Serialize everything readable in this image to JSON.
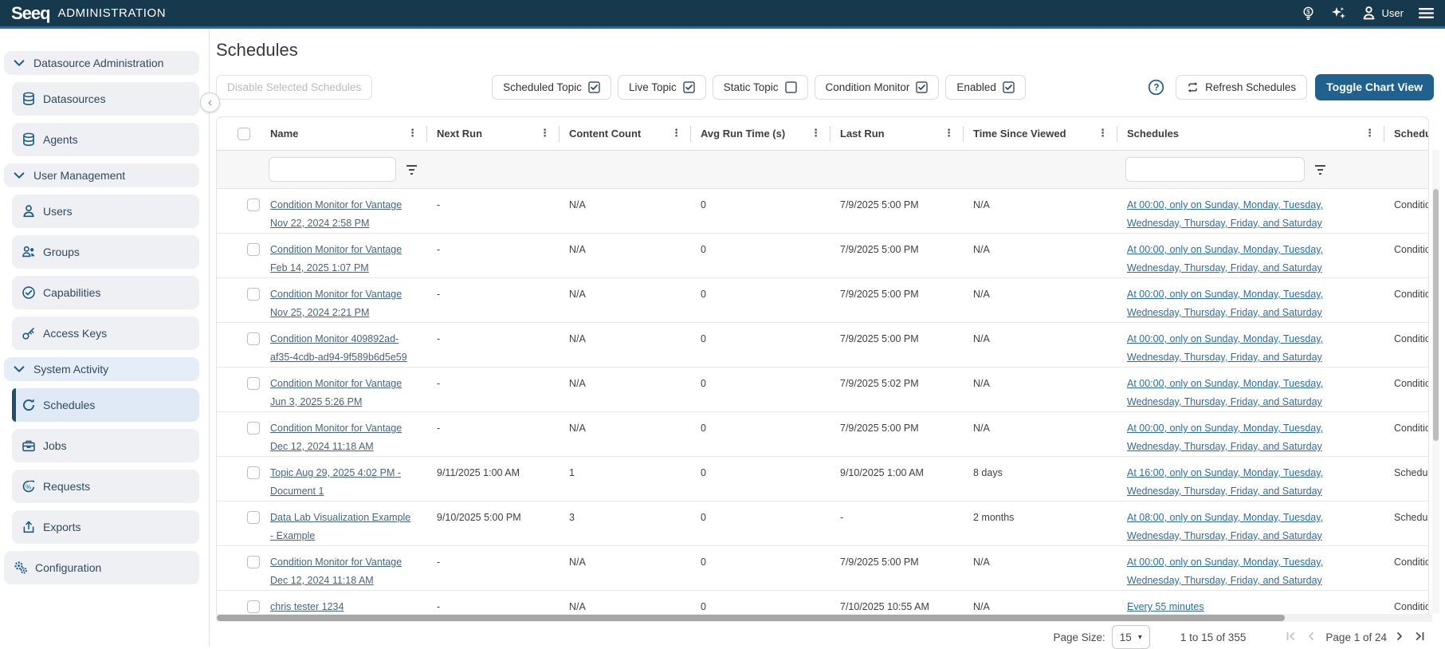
{
  "topbar": {
    "brand": "Seeq",
    "title": "ADMINISTRATION",
    "user_label": "User",
    "icons": [
      "tips-lightbulb-icon",
      "ai-sparkles-icon",
      "user-icon",
      "hamburger-menu-icon"
    ]
  },
  "sidebar": {
    "items": [
      {
        "kind": "section",
        "icon": "chevron-down",
        "label": "Datasource Administration"
      },
      {
        "kind": "item",
        "icon": "database",
        "label": "Datasources"
      },
      {
        "kind": "item",
        "icon": "database",
        "label": "Agents"
      },
      {
        "kind": "section",
        "icon": "chevron-down",
        "label": "User Management"
      },
      {
        "kind": "item",
        "icon": "user",
        "label": "Users"
      },
      {
        "kind": "item",
        "icon": "users",
        "label": "Groups"
      },
      {
        "kind": "item",
        "icon": "check-circle",
        "label": "Capabilities"
      },
      {
        "kind": "item",
        "icon": "key",
        "label": "Access Keys"
      },
      {
        "kind": "section",
        "icon": "chevron-down",
        "label": "System Activity",
        "highlight": true
      },
      {
        "kind": "item",
        "icon": "refresh",
        "label": "Schedules",
        "active": true
      },
      {
        "kind": "item",
        "icon": "briefcase",
        "label": "Jobs"
      },
      {
        "kind": "item",
        "icon": "gauge",
        "label": "Requests"
      },
      {
        "kind": "item",
        "icon": "export",
        "label": "Exports"
      },
      {
        "kind": "item",
        "icon": "gears",
        "label": "Configuration",
        "wide": true
      }
    ]
  },
  "page": {
    "title": "Schedules",
    "disable_button": "Disable Selected Schedules",
    "filters": [
      {
        "label": "Scheduled Topic",
        "checked": true
      },
      {
        "label": "Live Topic",
        "checked": true
      },
      {
        "label": "Static Topic",
        "checked": false
      },
      {
        "label": "Condition Monitor",
        "checked": true
      },
      {
        "label": "Enabled",
        "checked": true
      }
    ],
    "refresh_button": "Refresh Schedules",
    "toggle_chart_button": "Toggle Chart View"
  },
  "table": {
    "columns": [
      "Name",
      "Next Run",
      "Content Count",
      "Avg Run Time (s)",
      "Last Run",
      "Time Since Viewed",
      "Schedules",
      "Schedule Type"
    ],
    "rows": [
      {
        "name": "Condition Monitor for Vantage Nov 22, 2024 2:58 PM",
        "next_run": "-",
        "content_count": "N/A",
        "avg_run_time": "0",
        "last_run": "7/9/2025 5:00 PM",
        "time_since_viewed": "N/A",
        "schedules": "At 00:00, only on Sunday, Monday, Tuesday, Wednesday, Thursday, Friday, and Saturday",
        "schedule_type": "Condition Monitor"
      },
      {
        "name": "Condition Monitor for Vantage Feb 14, 2025 1:07 PM",
        "next_run": "-",
        "content_count": "N/A",
        "avg_run_time": "0",
        "last_run": "7/9/2025 5:00 PM",
        "time_since_viewed": "N/A",
        "schedules": "At 00:00, only on Sunday, Monday, Tuesday, Wednesday, Thursday, Friday, and Saturday",
        "schedule_type": "Condition Monitor"
      },
      {
        "name": "Condition Monitor for Vantage Nov 25, 2024 2:21 PM",
        "next_run": "-",
        "content_count": "N/A",
        "avg_run_time": "0",
        "last_run": "7/9/2025 5:00 PM",
        "time_since_viewed": "N/A",
        "schedules": "At 00:00, only on Sunday, Monday, Tuesday, Wednesday, Thursday, Friday, and Saturday",
        "schedule_type": "Condition Monitor"
      },
      {
        "name": "Condition Monitor 409892ad-af35-4cdb-ad94-9f589b6d5e59",
        "next_run": "-",
        "content_count": "N/A",
        "avg_run_time": "0",
        "last_run": "7/9/2025 5:00 PM",
        "time_since_viewed": "N/A",
        "schedules": "At 00:00, only on Sunday, Monday, Tuesday, Wednesday, Thursday, Friday, and Saturday",
        "schedule_type": "Condition Monitor"
      },
      {
        "name": "Condition Monitor for Vantage Jun 3, 2025 5:26 PM",
        "next_run": "-",
        "content_count": "N/A",
        "avg_run_time": "0",
        "last_run": "7/9/2025 5:02 PM",
        "time_since_viewed": "N/A",
        "schedules": "At 00:00, only on Sunday, Monday, Tuesday, Wednesday, Thursday, Friday, and Saturday",
        "schedule_type": "Condition Monitor"
      },
      {
        "name": "Condition Monitor for Vantage Dec 12, 2024 11:18 AM",
        "next_run": "-",
        "content_count": "N/A",
        "avg_run_time": "0",
        "last_run": "7/9/2025 5:00 PM",
        "time_since_viewed": "N/A",
        "schedules": "At 00:00, only on Sunday, Monday, Tuesday, Wednesday, Thursday, Friday, and Saturday",
        "schedule_type": "Condition Monitor"
      },
      {
        "name": "Topic Aug 29, 2025 4:02 PM - Document 1",
        "next_run": "9/11/2025 1:00 AM",
        "content_count": "1",
        "avg_run_time": "0",
        "last_run": "9/10/2025 1:00 AM",
        "time_since_viewed": "8 days",
        "schedules": "At 16:00, only on Sunday, Monday, Tuesday, Wednesday, Thursday, Friday, and Saturday",
        "schedule_type": "Scheduled Topic"
      },
      {
        "name": "Data Lab Visualization Example - Example",
        "next_run": "9/10/2025 5:00 PM",
        "content_count": "3",
        "avg_run_time": "0",
        "last_run": "-",
        "time_since_viewed": "2 months",
        "schedules": "At 08:00, only on Sunday, Monday, Tuesday, Wednesday, Thursday, Friday, and Saturday",
        "schedule_type": "Scheduled Topic"
      },
      {
        "name": "Condition Monitor for Vantage Dec 12, 2024 11:18 AM",
        "next_run": "-",
        "content_count": "N/A",
        "avg_run_time": "0",
        "last_run": "7/9/2025 5:00 PM",
        "time_since_viewed": "N/A",
        "schedules": "At 00:00, only on Sunday, Monday, Tuesday, Wednesday, Thursday, Friday, and Saturday",
        "schedule_type": "Condition Monitor"
      },
      {
        "name": "chris tester 1234",
        "next_run": "-",
        "content_count": "N/A",
        "avg_run_time": "0",
        "last_run": "7/10/2025 10:55 AM",
        "time_since_viewed": "N/A",
        "schedules": "Every 55 minutes",
        "schedule_type": "Condition Monitor"
      }
    ]
  },
  "pagination": {
    "page_size_label": "Page Size:",
    "page_size": "15",
    "range": "1 to 15 of 355",
    "page_label": "Page 1 of 24"
  }
}
